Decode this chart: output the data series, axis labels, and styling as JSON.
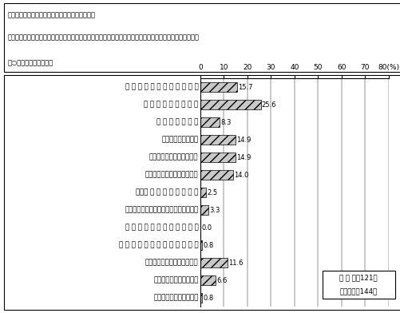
{
  "title_line1": "（問２３で１、２と答えた方にお聴きします。）",
  "title_line2": "問２４　その出来事があったとき、その相手はあなたとどのような関係でしたか。当てはまるものすべてに",
  "title_line3": "　○をつけてください。",
  "categories": [
    "相手がだれだかわからない",
    "まったく知らない人",
    "ただの顔見知り",
    "知人・友人",
    "恋人",
    "夫（事実婚や別居中を含む）",
    "親（義理の親も含む）",
    "きょうだい（義理のきょうだいも含む）",
    "その他の同居している親類",
    "その他の同居していない親類",
    "職場関係者",
    "その他",
    "無回答"
  ],
  "cat_display": [
    "相 手 が だ れ だ か わ か ら な い",
    "ま っ た く 知 ら な い 人",
    "た だ の 顔 見 知 り",
    "知　人　・　友　人",
    "恋　　　　　　　　　　人",
    "夫（事実婚や別居中を含む）",
    "親　（ 義 理 の 親 も 含 む ）",
    "きょうだい（義理のきょうだいも含む）",
    "そ の 他 の 同 居 し て い る 親 類",
    "そ の 他 の 同 居 し て い な い 親 類",
    "職　　場　　関　　係　　者",
    "そ　　　　の　　　　他",
    "無　　　　回　　　　答"
  ],
  "values": [
    15.7,
    25.6,
    8.3,
    14.9,
    14.9,
    14.0,
    2.5,
    3.3,
    0.0,
    0.8,
    11.6,
    6.6,
    0.8
  ],
  "xlim": [
    0,
    80
  ],
  "xticks": [
    0,
    10,
    20,
    30,
    40,
    50,
    60,
    70,
    80
  ],
  "legend_line1": "該 当 数（121）",
  "legend_line2": "回答数計（144）",
  "bar_hatch": "///",
  "bar_facecolor": "#c8c8c8",
  "bg_color": "#ffffff"
}
